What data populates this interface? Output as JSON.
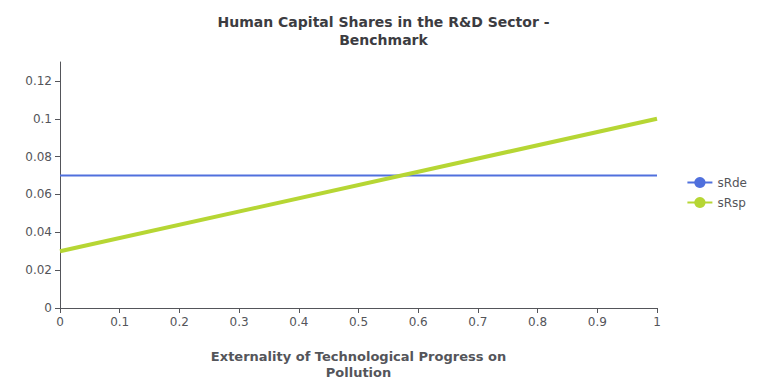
{
  "chart_data": {
    "type": "line",
    "title": "Human Capital Shares in the R&D Sector -\nBenchmark",
    "xlabel": "Externality of Technological Progress on\nPollution",
    "x": [
      0,
      1
    ],
    "series": [
      {
        "name": "sRde",
        "values": [
          0.07,
          0.07
        ]
      },
      {
        "name": "sRsp",
        "values": [
          0.03,
          0.1
        ]
      }
    ],
    "xlim": [
      0,
      1
    ],
    "ylim": [
      0,
      0.13
    ],
    "xticks": [
      0,
      0.1,
      0.2,
      0.3,
      0.4,
      0.5,
      0.6,
      0.7,
      0.8,
      0.9,
      1
    ],
    "yticks": [
      0,
      0.02,
      0.04,
      0.06,
      0.08,
      0.1,
      0.12
    ],
    "grid": false,
    "legend": "right"
  }
}
